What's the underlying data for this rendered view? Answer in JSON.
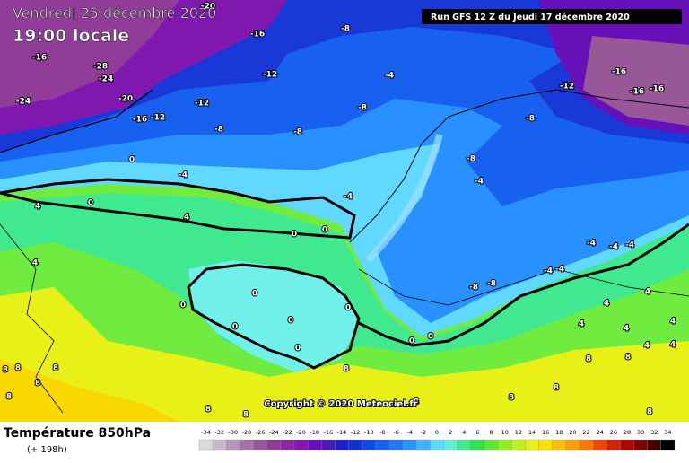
{
  "header": {
    "date": "Vendredi 25 décembre 2020",
    "time": "19:00 locale",
    "run": "Run GFS 12 Z du Jeudi 17 décembre 2020"
  },
  "map": {
    "copyright": "Copyright © 2020 Meteociel.fr",
    "contour_labels": [
      -20,
      -16,
      -8,
      -28,
      -24,
      -16,
      -20,
      -12,
      -4,
      -16,
      -12,
      -16,
      -16,
      -24,
      -12,
      -8,
      -16,
      -12,
      -8,
      -8,
      -8,
      0,
      -4,
      -8,
      -4,
      -4,
      4,
      0,
      4,
      0,
      0,
      -4,
      -4,
      -4,
      4,
      -4,
      -4,
      -8,
      -8,
      4,
      0,
      0,
      0,
      4,
      0,
      4,
      4,
      0,
      0,
      0,
      4,
      4,
      0,
      4,
      8,
      8,
      8,
      8,
      8,
      8,
      8,
      8,
      8,
      8,
      8,
      8,
      8,
      8
    ]
  },
  "legend": {
    "title": "Température 850hPa",
    "lead": "(+ 198h)",
    "scale": [
      -34,
      -32,
      -30,
      -28,
      -26,
      -24,
      -22,
      -20,
      -18,
      -16,
      -14,
      -12,
      -10,
      -8,
      -6,
      -4,
      -2,
      0,
      2,
      4,
      6,
      8,
      10,
      12,
      14,
      16,
      18,
      20,
      22,
      24,
      26,
      28,
      30,
      32,
      34
    ],
    "colors": [
      "#d9d9d9",
      "#c8b8c8",
      "#b894b8",
      "#a874a8",
      "#985898",
      "#903c98",
      "#8c28a0",
      "#8018b0",
      "#6810b8",
      "#4818c0",
      "#2020c8",
      "#1030d8",
      "#1048e8",
      "#1860f0",
      "#2078f8",
      "#3090ff",
      "#40b0ff",
      "#60d8ff",
      "#60f0d0",
      "#40e890",
      "#30e050",
      "#60e830",
      "#90f020",
      "#c0f020",
      "#e8f018",
      "#f8e000",
      "#f8c000",
      "#f8a000",
      "#f87800",
      "#f04800",
      "#d82000",
      "#b00000",
      "#800000",
      "#400000",
      "#000000"
    ]
  }
}
